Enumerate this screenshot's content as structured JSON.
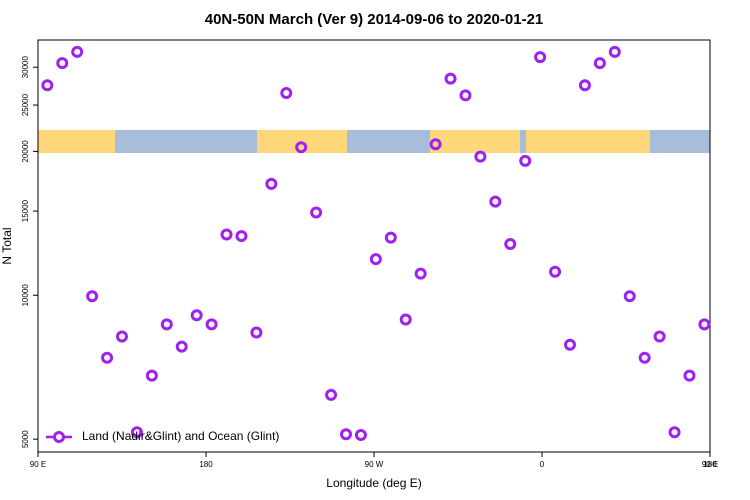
{
  "chart_data": {
    "type": "scatter",
    "title": "40N-50N March (Ver 9)   2014-09-06 to 2020-01-21",
    "x_label": "Longitude (deg E)",
    "y_label": "N Total",
    "log_y": true,
    "xlim": [
      90,
      450
    ],
    "ylim": [
      4700,
      34200
    ],
    "xticks": [
      {
        "value": 90,
        "label": "90 E"
      },
      180,
      {
        "value": 270,
        "label": "90 W"
      },
      {
        "value": 360,
        "label": "0"
      },
      {
        "value": 450,
        "label": "90 E"
      },
      {
        "value": 540,
        "label": "180"
      }
    ],
    "yticks": [
      5000,
      10000,
      15000,
      20000,
      25000,
      30000
    ],
    "legend": "bottom-left",
    "series": [
      {
        "name": "Land (Nadir&Glint) and Ocean (Glint)",
        "color": "#a020f0",
        "x": [
          95,
          103,
          111,
          119,
          127,
          135,
          143,
          151,
          159,
          167,
          175,
          183,
          191,
          199,
          207,
          215,
          223,
          231,
          239,
          247,
          255,
          263,
          271,
          279,
          287,
          295,
          303,
          311,
          319,
          327,
          335,
          343,
          351,
          359,
          367,
          375,
          383,
          391,
          399,
          407,
          415,
          423,
          431,
          439,
          447
        ],
        "values": [
          27500,
          30600,
          32300,
          9950,
          7400,
          8200,
          5170,
          6790,
          8690,
          7810,
          9080,
          8690,
          13400,
          13300,
          8360,
          17100,
          26500,
          20400,
          14900,
          6190,
          5120,
          5100,
          11900,
          13200,
          8900,
          11100,
          20700,
          28400,
          26200,
          19500,
          15700,
          12800,
          19100,
          31500,
          11200,
          7880,
          27500,
          30600,
          32300,
          9950,
          7400,
          8200,
          5170,
          6790,
          8690
        ]
      }
    ]
  }
}
